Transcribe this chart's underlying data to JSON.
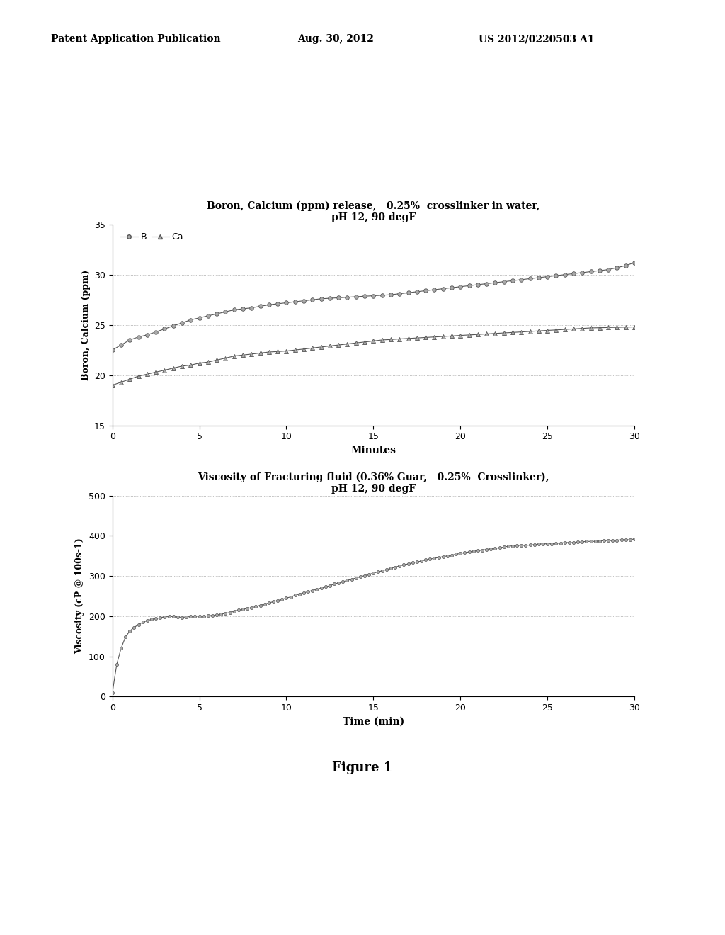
{
  "header_left": "Patent Application Publication",
  "header_center": "Aug. 30, 2012",
  "header_right": "US 2012/0220503 A1",
  "figure_label": "Figure 1",
  "chart1": {
    "title_line1": "Boron, Calcium (ppm) release,   0.25%  crosslinker in water,",
    "title_line2": "pH 12, 90 degF",
    "xlabel": "Minutes",
    "ylabel": "Boron, Calcium (ppm)",
    "xlim": [
      0,
      30
    ],
    "ylim": [
      15,
      35
    ],
    "yticks": [
      15,
      20,
      25,
      30,
      35
    ],
    "xticks": [
      0,
      5,
      10,
      15,
      20,
      25,
      30
    ],
    "legend": [
      "B",
      "Ca"
    ],
    "B_x": [
      0,
      0.5,
      1,
      1.5,
      2,
      2.5,
      3,
      3.5,
      4,
      4.5,
      5,
      5.5,
      6,
      6.5,
      7,
      7.5,
      8,
      8.5,
      9,
      9.5,
      10,
      10.5,
      11,
      11.5,
      12,
      12.5,
      13,
      13.5,
      14,
      14.5,
      15,
      15.5,
      16,
      16.5,
      17,
      17.5,
      18,
      18.5,
      19,
      19.5,
      20,
      20.5,
      21,
      21.5,
      22,
      22.5,
      23,
      23.5,
      24,
      24.5,
      25,
      25.5,
      26,
      26.5,
      27,
      27.5,
      28,
      28.5,
      29,
      29.5,
      30
    ],
    "B_y": [
      22.5,
      23.0,
      23.5,
      23.8,
      24.0,
      24.3,
      24.6,
      24.9,
      25.2,
      25.5,
      25.7,
      25.9,
      26.1,
      26.3,
      26.5,
      26.6,
      26.7,
      26.85,
      27.0,
      27.1,
      27.2,
      27.3,
      27.4,
      27.5,
      27.6,
      27.65,
      27.7,
      27.75,
      27.8,
      27.85,
      27.9,
      27.95,
      28.0,
      28.1,
      28.2,
      28.3,
      28.4,
      28.5,
      28.6,
      28.7,
      28.8,
      28.9,
      29.0,
      29.1,
      29.2,
      29.3,
      29.4,
      29.5,
      29.6,
      29.7,
      29.8,
      29.9,
      30.0,
      30.1,
      30.2,
      30.3,
      30.4,
      30.5,
      30.7,
      30.9,
      31.2
    ],
    "Ca_x": [
      0,
      0.5,
      1,
      1.5,
      2,
      2.5,
      3,
      3.5,
      4,
      4.5,
      5,
      5.5,
      6,
      6.5,
      7,
      7.5,
      8,
      8.5,
      9,
      9.5,
      10,
      10.5,
      11,
      11.5,
      12,
      12.5,
      13,
      13.5,
      14,
      14.5,
      15,
      15.5,
      16,
      16.5,
      17,
      17.5,
      18,
      18.5,
      19,
      19.5,
      20,
      20.5,
      21,
      21.5,
      22,
      22.5,
      23,
      23.5,
      24,
      24.5,
      25,
      25.5,
      26,
      26.5,
      27,
      27.5,
      28,
      28.5,
      29,
      29.5,
      30
    ],
    "Ca_y": [
      19.0,
      19.3,
      19.6,
      19.9,
      20.1,
      20.3,
      20.5,
      20.7,
      20.9,
      21.0,
      21.2,
      21.3,
      21.5,
      21.7,
      21.9,
      22.0,
      22.1,
      22.2,
      22.3,
      22.35,
      22.4,
      22.5,
      22.6,
      22.7,
      22.8,
      22.9,
      23.0,
      23.1,
      23.2,
      23.3,
      23.4,
      23.5,
      23.55,
      23.6,
      23.65,
      23.7,
      23.75,
      23.8,
      23.85,
      23.9,
      23.95,
      24.0,
      24.05,
      24.1,
      24.15,
      24.2,
      24.25,
      24.3,
      24.35,
      24.4,
      24.45,
      24.5,
      24.55,
      24.6,
      24.65,
      24.7,
      24.72,
      24.74,
      24.76,
      24.78,
      24.8
    ],
    "line_color": "#555555",
    "marker_B": "o",
    "marker_Ca": "^",
    "marker_size": 4
  },
  "chart2": {
    "title_line1": "Viscosity of Fracturing fluid (0.36% Guar,   0.25%  Crosslinker),",
    "title_line2": "pH 12, 90 degF",
    "xlabel": "Time (min)",
    "ylabel": "Viscosity (cP @ 100s-1)",
    "xlim": [
      0,
      30
    ],
    "ylim": [
      0,
      500
    ],
    "yticks": [
      0,
      100,
      200,
      300,
      400,
      500
    ],
    "xticks": [
      0,
      5,
      10,
      15,
      20,
      25,
      30
    ],
    "visc_x": [
      0,
      0.25,
      0.5,
      0.75,
      1.0,
      1.25,
      1.5,
      1.75,
      2.0,
      2.25,
      2.5,
      2.75,
      3.0,
      3.25,
      3.5,
      3.75,
      4.0,
      4.25,
      4.5,
      4.75,
      5.0,
      5.25,
      5.5,
      5.75,
      6.0,
      6.25,
      6.5,
      6.75,
      7.0,
      7.25,
      7.5,
      7.75,
      8.0,
      8.25,
      8.5,
      8.75,
      9.0,
      9.25,
      9.5,
      9.75,
      10.0,
      10.25,
      10.5,
      10.75,
      11.0,
      11.25,
      11.5,
      11.75,
      12.0,
      12.25,
      12.5,
      12.75,
      13.0,
      13.25,
      13.5,
      13.75,
      14.0,
      14.25,
      14.5,
      14.75,
      15.0,
      15.25,
      15.5,
      15.75,
      16.0,
      16.25,
      16.5,
      16.75,
      17.0,
      17.25,
      17.5,
      17.75,
      18.0,
      18.25,
      18.5,
      18.75,
      19.0,
      19.25,
      19.5,
      19.75,
      20.0,
      20.25,
      20.5,
      20.75,
      21.0,
      21.25,
      21.5,
      21.75,
      22.0,
      22.25,
      22.5,
      22.75,
      23.0,
      23.25,
      23.5,
      23.75,
      24.0,
      24.25,
      24.5,
      24.75,
      25.0,
      25.25,
      25.5,
      25.75,
      26.0,
      26.25,
      26.5,
      26.75,
      27.0,
      27.25,
      27.5,
      27.75,
      28.0,
      28.25,
      28.5,
      28.75,
      29.0,
      29.25,
      29.5,
      29.75,
      30.0
    ],
    "visc_y": [
      10,
      80,
      120,
      148,
      163,
      172,
      179,
      185,
      189,
      192,
      194,
      196,
      198,
      199,
      199,
      198,
      197,
      198,
      199,
      200,
      200,
      200,
      201,
      202,
      203,
      205,
      207,
      209,
      212,
      215,
      217,
      219,
      221,
      224,
      227,
      230,
      233,
      236,
      239,
      242,
      245,
      248,
      252,
      255,
      258,
      261,
      264,
      267,
      270,
      273,
      276,
      280,
      283,
      286,
      289,
      292,
      295,
      298,
      301,
      304,
      307,
      310,
      313,
      316,
      319,
      322,
      325,
      328,
      330,
      333,
      335,
      337,
      340,
      342,
      344,
      346,
      348,
      350,
      352,
      354,
      356,
      358,
      360,
      362,
      363,
      364,
      366,
      368,
      369,
      370,
      372,
      374,
      375,
      376,
      376,
      376,
      377,
      378,
      379,
      380,
      380,
      380,
      381,
      382,
      383,
      383,
      383,
      384,
      385,
      386,
      386,
      386,
      387,
      388,
      388,
      388,
      389,
      390,
      390,
      390,
      392
    ],
    "line_color": "#555555",
    "marker": "o",
    "marker_size": 3
  },
  "background_color": "#ffffff",
  "text_color": "#000000"
}
